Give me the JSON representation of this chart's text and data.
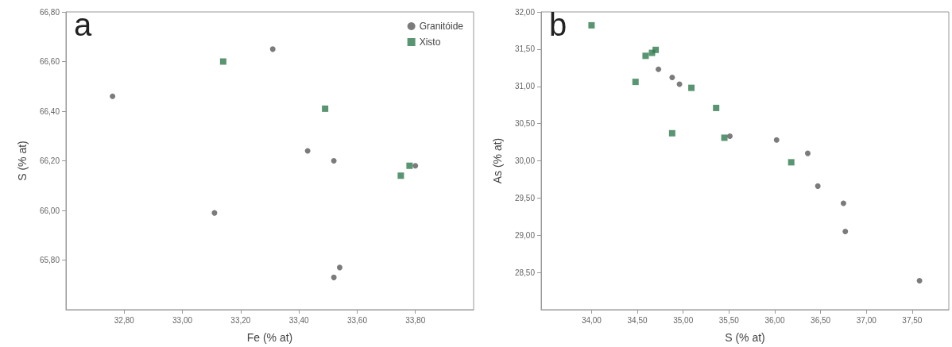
{
  "chart_data": [
    {
      "type": "scatter",
      "title": "a",
      "xlabel": "Fe (% at)",
      "ylabel": "S (% at)",
      "xlim": [
        32.6,
        34.0
      ],
      "ylim": [
        65.6,
        66.8
      ],
      "xticks": [
        {
          "value": 32.8,
          "label": "32,80"
        },
        {
          "value": 33.0,
          "label": "33,00"
        },
        {
          "value": 33.2,
          "label": "33,20"
        },
        {
          "value": 33.4,
          "label": "33,40"
        },
        {
          "value": 33.6,
          "label": "33,60"
        },
        {
          "value": 33.8,
          "label": "33,80"
        }
      ],
      "yticks": [
        {
          "value": 65.8,
          "label": "65,80"
        },
        {
          "value": 66.0,
          "label": "66,00"
        },
        {
          "value": 66.2,
          "label": "66,20"
        },
        {
          "value": 66.4,
          "label": "66,40"
        },
        {
          "value": 66.6,
          "label": "66,60"
        },
        {
          "value": 66.8,
          "label": "66,80"
        }
      ],
      "grid": false,
      "legend": "top right",
      "series": [
        {
          "name": "Granitóide",
          "color": "#5a5a5a",
          "marker": "circle",
          "x": [
            32.76,
            33.11,
            33.31,
            33.43,
            33.52,
            33.54,
            33.52,
            33.8
          ],
          "values": [
            66.46,
            65.99,
            66.65,
            66.24,
            66.2,
            65.77,
            65.73,
            66.18
          ]
        },
        {
          "name": "Xisto",
          "color": "#2f7a4e",
          "marker": "square",
          "x": [
            33.14,
            33.49,
            33.75,
            33.78
          ],
          "values": [
            66.6,
            66.41,
            66.14,
            66.18
          ]
        }
      ]
    },
    {
      "type": "scatter",
      "title": "b",
      "xlabel": "S (% at)",
      "ylabel": "As (% at)",
      "xlim": [
        33.45,
        37.9
      ],
      "ylim": [
        28.0,
        32.0
      ],
      "xticks": [
        {
          "value": 34.0,
          "label": "34,00"
        },
        {
          "value": 34.5,
          "label": "34,50"
        },
        {
          "value": 35.0,
          "label": "35,00"
        },
        {
          "value": 35.5,
          "label": "35,50"
        },
        {
          "value": 36.0,
          "label": "36,00"
        },
        {
          "value": 36.5,
          "label": "36,50"
        },
        {
          "value": 37.0,
          "label": "37,00"
        },
        {
          "value": 37.5,
          "label": "37,50"
        }
      ],
      "yticks": [
        {
          "value": 28.5,
          "label": "28,50"
        },
        {
          "value": 29.0,
          "label": "29,00"
        },
        {
          "value": 29.5,
          "label": "29,50"
        },
        {
          "value": 30.0,
          "label": "30,00"
        },
        {
          "value": 30.5,
          "label": "30,50"
        },
        {
          "value": 31.0,
          "label": "31,00"
        },
        {
          "value": 31.5,
          "label": "31,50"
        },
        {
          "value": 32.0,
          "label": "32,00"
        }
      ],
      "grid": false,
      "legend": false,
      "series": [
        {
          "color": "#5a5a5a",
          "marker": "circle",
          "x": [
            34.73,
            34.88,
            34.96,
            35.51,
            36.02,
            36.36,
            36.47,
            36.75,
            36.77,
            37.58
          ],
          "values": [
            31.23,
            31.12,
            31.03,
            30.33,
            30.28,
            30.1,
            29.66,
            29.43,
            29.05,
            28.39
          ]
        },
        {
          "color": "#2f7a4e",
          "marker": "square",
          "x": [
            34.0,
            34.48,
            34.59,
            34.66,
            34.7,
            35.09,
            34.88,
            35.36,
            35.45,
            36.18
          ],
          "values": [
            31.82,
            31.06,
            31.41,
            31.45,
            31.49,
            30.98,
            30.37,
            30.71,
            30.31,
            29.98
          ]
        }
      ]
    }
  ]
}
